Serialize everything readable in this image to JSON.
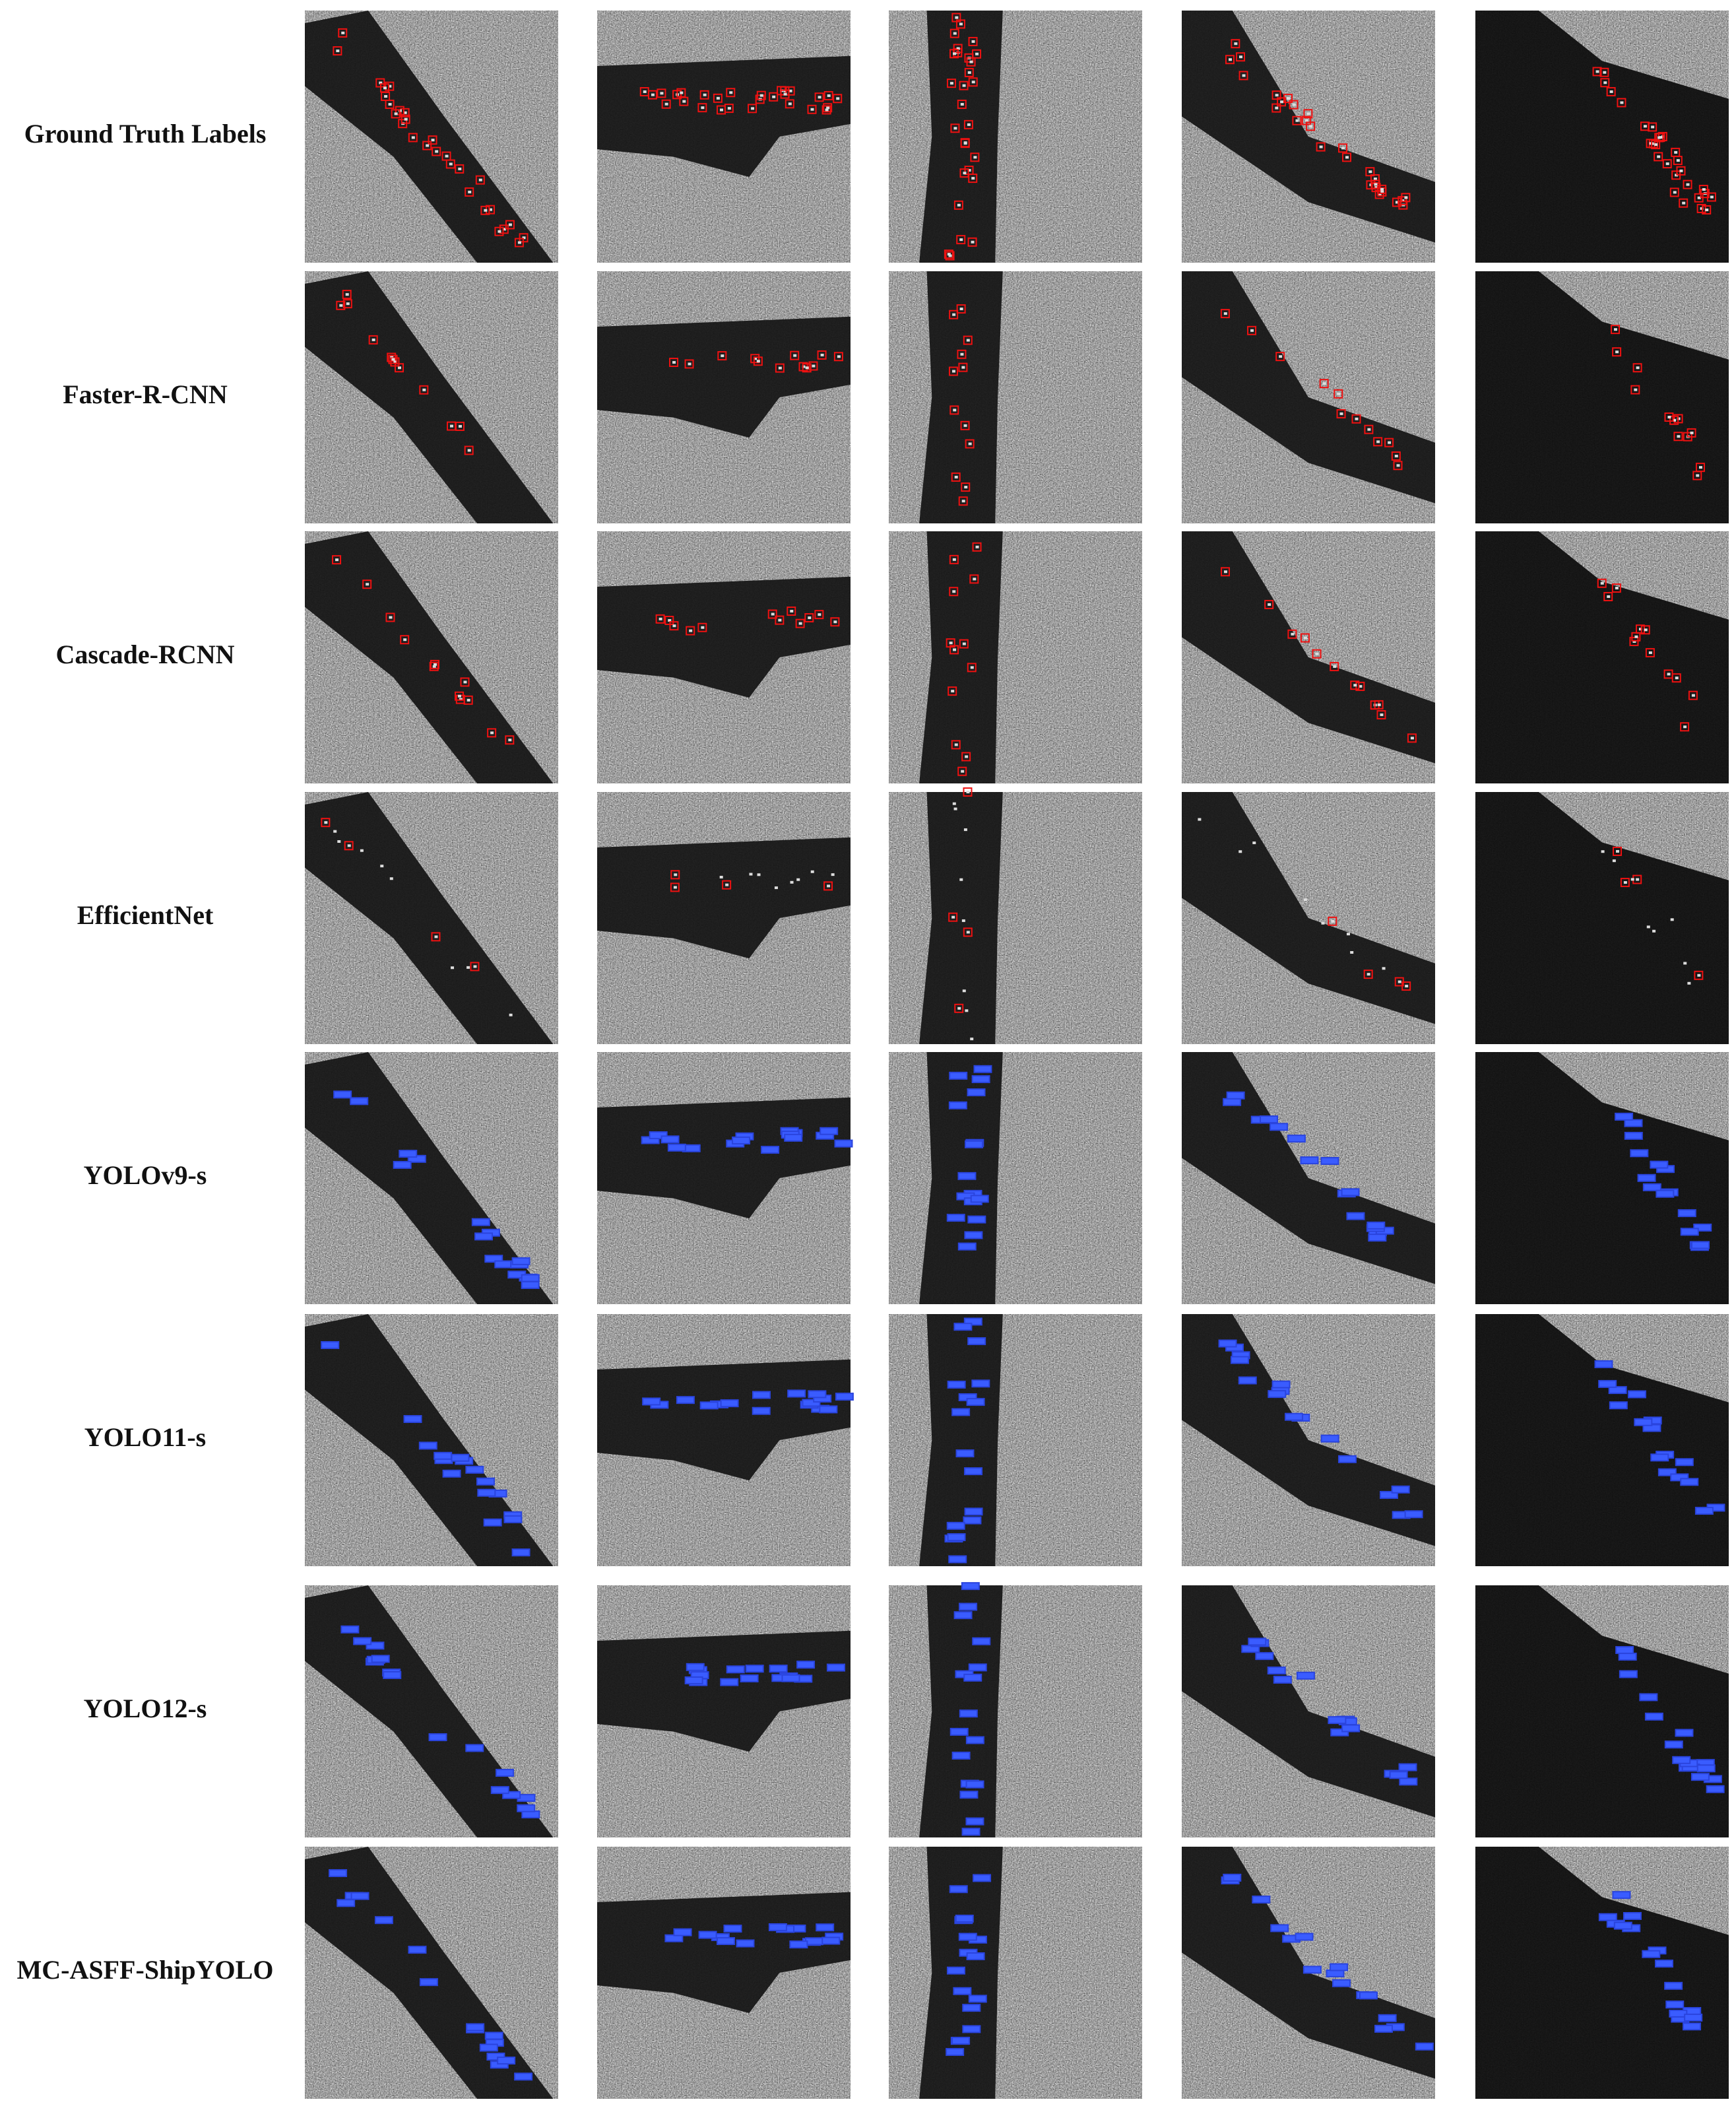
{
  "rows": [
    {
      "label": "Ground Truth Labels"
    },
    {
      "label": "Faster-R-CNN"
    },
    {
      "label": "Cascade-RCNN"
    },
    {
      "label": "EfficientNet"
    },
    {
      "label": "YOLOv9-s"
    },
    {
      "label": "YOLO11-s"
    },
    {
      "label": "YOLO12-s"
    },
    {
      "label": "MC-ASFF-ShipYOLO"
    }
  ]
}
